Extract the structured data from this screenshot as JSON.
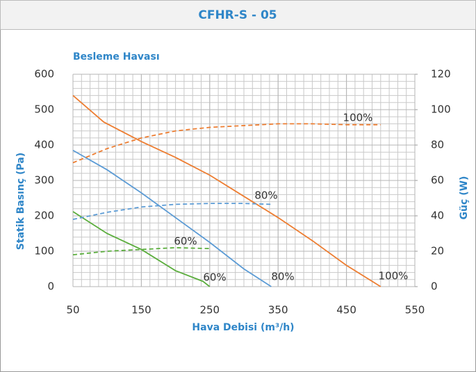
{
  "chart_data": {
    "type": "line",
    "title": "CFHR-S - 05",
    "subtitle": "Besleme Havası",
    "xlabel": "Hava Debisi (m³/h)",
    "ylabel": "Statik Basınç (Pa)",
    "y2label": "Güç (W)",
    "xlim": [
      50,
      550
    ],
    "xticks": [
      50,
      150,
      250,
      350,
      450,
      550
    ],
    "ylim": [
      0,
      600
    ],
    "yticks": [
      0,
      100,
      200,
      300,
      400,
      500,
      600
    ],
    "y2lim": [
      0,
      120
    ],
    "y2ticks": [
      0,
      20,
      40,
      60,
      80,
      100,
      120
    ],
    "grid": true,
    "minor_grid": {
      "x": 12.5,
      "y": 20
    },
    "series": [
      {
        "name": "100%",
        "color": "#ed7d31",
        "style": "solid",
        "axis": "y",
        "x": [
          50,
          95,
          150,
          200,
          250,
          300,
          350,
          400,
          450,
          500
        ],
        "values": [
          540,
          465,
          410,
          365,
          315,
          255,
          195,
          130,
          60,
          0
        ]
      },
      {
        "name": "80%",
        "color": "#5b9bd5",
        "style": "solid",
        "axis": "y",
        "x": [
          50,
          100,
          150,
          200,
          250,
          300,
          340
        ],
        "values": [
          385,
          330,
          265,
          195,
          125,
          50,
          0
        ]
      },
      {
        "name": "60%",
        "color": "#5aad3c",
        "style": "solid",
        "axis": "y",
        "x": [
          50,
          100,
          150,
          200,
          240,
          250
        ],
        "values": [
          212,
          150,
          105,
          45,
          15,
          0
        ]
      },
      {
        "name": "100%",
        "color": "#ed7d31",
        "style": "dashed",
        "axis": "y2",
        "x": [
          50,
          100,
          150,
          200,
          250,
          300,
          350,
          400,
          450,
          500
        ],
        "values": [
          70,
          78,
          84,
          88,
          90,
          91,
          92,
          92,
          91.5,
          91.5
        ]
      },
      {
        "name": "80%",
        "color": "#5b9bd5",
        "style": "dashed",
        "axis": "y2",
        "x": [
          50,
          100,
          150,
          200,
          250,
          300,
          340
        ],
        "values": [
          38,
          42,
          45,
          46.5,
          47,
          47,
          46.5
        ]
      },
      {
        "name": "60%",
        "color": "#5aad3c",
        "style": "dashed",
        "axis": "y2",
        "x": [
          50,
          100,
          150,
          200,
          250
        ],
        "values": [
          18,
          20,
          21,
          22,
          21.5
        ]
      }
    ]
  }
}
